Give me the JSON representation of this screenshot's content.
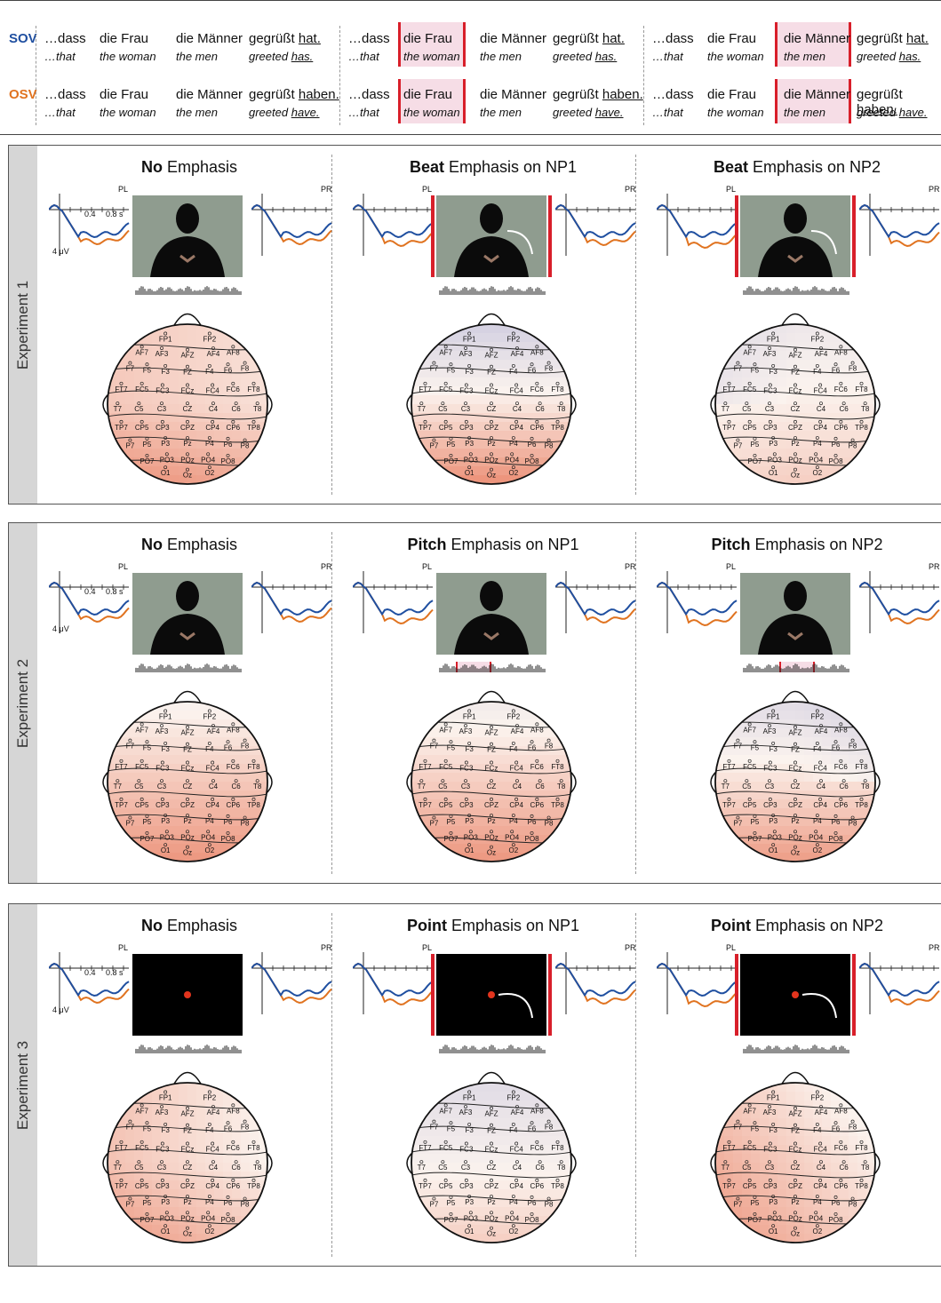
{
  "sentences": {
    "sov_label": "SOV",
    "osv_label": "OSV",
    "sov_label_color": "#1f4fa0",
    "osv_label_color": "#e07320",
    "highlight_color": "#f6dde6",
    "bar_color": "#d81f2a",
    "dass": "…dass",
    "that": "…that",
    "frau": "die Frau",
    "woman": "the woman",
    "maenner": "die Männer",
    "men": "the men",
    "gegruesst": "gegrüßt",
    "hat": "hat.",
    "haben": "haben.",
    "greeted": "greeted",
    "has": "has.",
    "have": "have."
  },
  "experiments": [
    {
      "side_label": "Experiment 1",
      "conditions": [
        {
          "bold": "No",
          "rest": " Emphasis"
        },
        {
          "bold": "Beat",
          "rest": " Emphasis on NP1"
        },
        {
          "bold": "Beat",
          "rest": " Emphasis on NP2"
        }
      ]
    },
    {
      "side_label": "Experiment 2",
      "conditions": [
        {
          "bold": "No",
          "rest": " Emphasis"
        },
        {
          "bold": "Pitch",
          "rest": " Emphasis on NP1"
        },
        {
          "bold": "Pitch",
          "rest": " Emphasis on NP2"
        }
      ]
    },
    {
      "side_label": "Experiment 3",
      "conditions": [
        {
          "bold": "No",
          "rest": " Emphasis"
        },
        {
          "bold": "Point",
          "rest": " Emphasis on NP1"
        },
        {
          "bold": "Point",
          "rest": " Emphasis on NP2"
        }
      ]
    }
  ],
  "erp": {
    "pl": "PL",
    "pr": "PR",
    "t04": "0.4",
    "t08": "0.8 s",
    "uv": "4 μV",
    "sov_color": "#1f4fa0",
    "osv_color": "#e07320"
  },
  "electrodes": [
    "FP1",
    "FP2",
    "AF7",
    "AF3",
    "AFZ",
    "AF4",
    "AF8",
    "F7",
    "F5",
    "F3",
    "FZ",
    "F4",
    "F6",
    "F8",
    "FT7",
    "FC5",
    "FC3",
    "FCz",
    "FC4",
    "FC6",
    "FT8",
    "T7",
    "C5",
    "C3",
    "CZ",
    "C4",
    "C6",
    "T8",
    "TP7",
    "CP5",
    "CP3",
    "CPZ",
    "CP4",
    "CP6",
    "TP8",
    "P7",
    "P5",
    "P3",
    "Pz",
    "P4",
    "P6",
    "P8",
    "PO7",
    "PO3",
    "POz",
    "PO4",
    "PO8",
    "O1",
    "Oz",
    "O2"
  ],
  "colors": {
    "positive": "#e8785a",
    "neutral": "#fbf3ee",
    "negative": "#b9b9d9"
  }
}
